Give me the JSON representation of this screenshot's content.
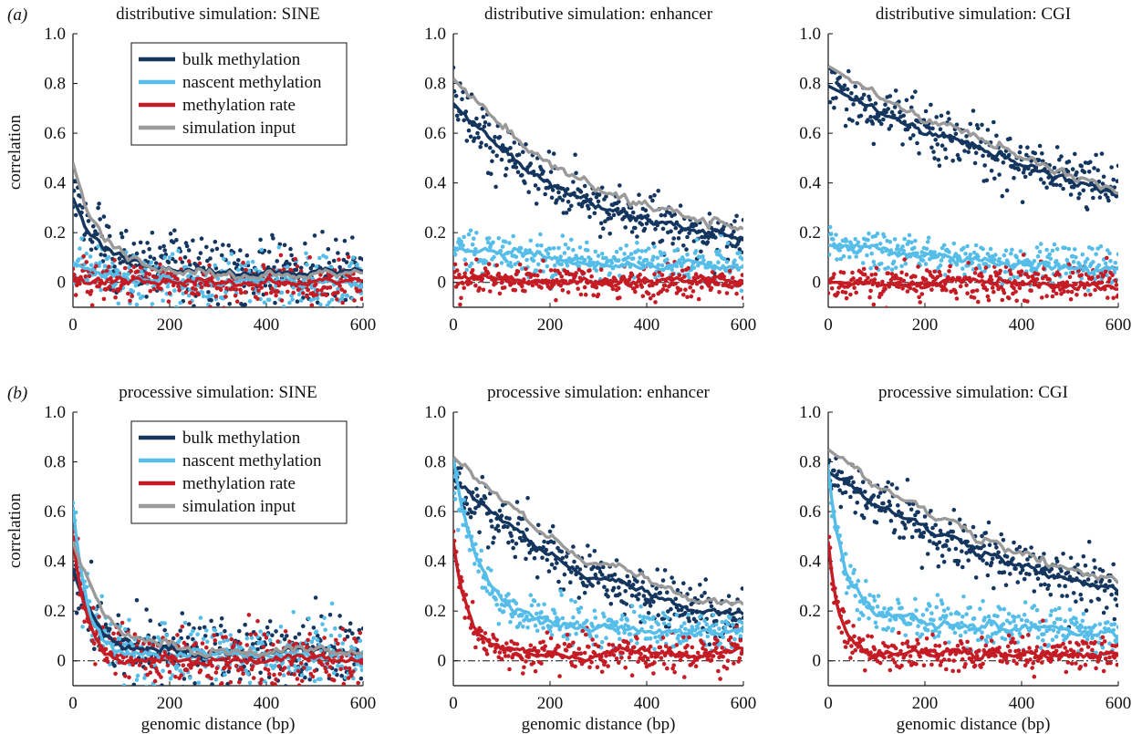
{
  "panel_labels": [
    "(a)",
    "(b)"
  ],
  "legend": {
    "entries": [
      "bulk methylation",
      "nascent methylation",
      "methylation rate",
      "simulation input"
    ]
  },
  "colors": {
    "bulk methylation": "#14365e",
    "nascent methylation": "#55bde8",
    "methylation rate": "#c41b24",
    "simulation input": "#9a9a9a"
  },
  "chart_data": [
    {
      "type": "scatter",
      "title": "distributive simulation: SINE",
      "xlabel": "",
      "ylabel": "correlation",
      "xlim": [
        0,
        600
      ],
      "ylim": [
        -0.1,
        1.0
      ],
      "xticks": [
        0,
        200,
        400,
        600
      ],
      "yticks": [
        0,
        0.2,
        0.4,
        0.6,
        0.8,
        1.0
      ],
      "legend_position": "top-left",
      "series": [
        {
          "name": "bulk methylation",
          "model": {
            "a0": 0.04,
            "a": 0.3,
            "L": 60
          },
          "noise": 0.075
        },
        {
          "name": "nascent methylation",
          "model": {
            "a0": 0.0,
            "a": 0.08,
            "L": 80
          },
          "noise": 0.05
        },
        {
          "name": "methylation rate",
          "model": {
            "a0": 0.0,
            "a": 0.02,
            "L": 50
          },
          "noise": 0.04
        },
        {
          "name": "simulation input",
          "model": {
            "a0": 0.03,
            "a": 0.45,
            "L": 60
          },
          "line_only": true
        }
      ]
    },
    {
      "type": "scatter",
      "title": "distributive simulation: enhancer",
      "xlabel": "",
      "ylabel": "",
      "xlim": [
        0,
        600
      ],
      "ylim": [
        -0.1,
        1.0
      ],
      "xticks": [
        0,
        200,
        400,
        600
      ],
      "yticks": [
        0,
        0.2,
        0.4,
        0.6,
        0.8,
        1.0
      ],
      "series": [
        {
          "name": "bulk methylation",
          "model": {
            "a0": 0.1,
            "a": 0.62,
            "L": 280
          },
          "noise": 0.055
        },
        {
          "name": "nascent methylation",
          "model": {
            "a0": 0.05,
            "a": 0.09,
            "L": 300
          },
          "noise": 0.04
        },
        {
          "name": "methylation rate",
          "model": {
            "a0": 0.0,
            "a": 0.02,
            "L": 200
          },
          "noise": 0.035
        },
        {
          "name": "simulation input",
          "model": {
            "a0": 0.1,
            "a": 0.72,
            "L": 320
          },
          "line_only": true
        }
      ]
    },
    {
      "type": "scatter",
      "title": "distributive simulation: CGI",
      "xlabel": "",
      "ylabel": "",
      "xlim": [
        0,
        600
      ],
      "ylim": [
        -0.1,
        1.0
      ],
      "xticks": [
        0,
        200,
        400,
        600
      ],
      "yticks": [
        0,
        0.2,
        0.4,
        0.6,
        0.8,
        1.0
      ],
      "series": [
        {
          "name": "bulk methylation",
          "model": {
            "a0": 0.0,
            "a": 0.79,
            "L": 800
          },
          "noise": 0.055
        },
        {
          "name": "nascent methylation",
          "model": {
            "a0": 0.02,
            "a": 0.13,
            "L": 500
          },
          "noise": 0.04
        },
        {
          "name": "methylation rate",
          "model": {
            "a0": 0.0,
            "a": 0.0,
            "L": 200
          },
          "noise": 0.035
        },
        {
          "name": "simulation input",
          "model": {
            "a0": 0.0,
            "a": 0.87,
            "L": 750
          },
          "line_only": true
        }
      ]
    },
    {
      "type": "scatter",
      "title": "processive simulation: SINE",
      "xlabel": "genomic distance (bp)",
      "ylabel": "correlation",
      "xlim": [
        0,
        600
      ],
      "ylim": [
        -0.1,
        1.0
      ],
      "xticks": [
        0,
        200,
        400,
        600
      ],
      "yticks": [
        0,
        0.2,
        0.4,
        0.6,
        0.8,
        1.0
      ],
      "legend_position": "top-left",
      "series": [
        {
          "name": "bulk methylation",
          "model": {
            "a0": 0.03,
            "a": 0.34,
            "L": 50
          },
          "noise": 0.07
        },
        {
          "name": "nascent methylation",
          "model": {
            "a0": 0.02,
            "a": 0.6,
            "L": 30
          },
          "noise": 0.065
        },
        {
          "name": "methylation rate",
          "model": {
            "a0": 0.0,
            "a": 0.5,
            "L": 28
          },
          "noise": 0.06
        },
        {
          "name": "simulation input",
          "model": {
            "a0": 0.03,
            "a": 0.45,
            "L": 70
          },
          "line_only": true
        }
      ]
    },
    {
      "type": "scatter",
      "title": "processive simulation: enhancer",
      "xlabel": "genomic distance (bp)",
      "ylabel": "",
      "xlim": [
        0,
        600
      ],
      "ylim": [
        -0.1,
        1.0
      ],
      "xticks": [
        0,
        200,
        400,
        600
      ],
      "yticks": [
        0,
        0.2,
        0.4,
        0.6,
        0.8,
        1.0
      ],
      "series": [
        {
          "name": "bulk methylation",
          "model": {
            "a0": 0.05,
            "a": 0.68,
            "L": 350
          },
          "noise": 0.055
        },
        {
          "name": "nascent methylation",
          "model": {
            "a0": 0.1,
            "a": 0.6,
            "L": 45,
            "b": 0.12,
            "L2": 250
          },
          "noise": 0.045
        },
        {
          "name": "methylation rate",
          "model": {
            "a0": 0.03,
            "a": 0.45,
            "L": 30
          },
          "noise": 0.035
        },
        {
          "name": "simulation input",
          "model": {
            "a0": 0.05,
            "a": 0.77,
            "L": 380
          },
          "line_only": true
        }
      ]
    },
    {
      "type": "scatter",
      "title": "processive simulation: CGI",
      "xlabel": "genomic distance (bp)",
      "ylabel": "",
      "xlim": [
        0,
        600
      ],
      "ylim": [
        -0.1,
        1.0
      ],
      "xticks": [
        0,
        200,
        400,
        600
      ],
      "yticks": [
        0,
        0.2,
        0.4,
        0.6,
        0.8,
        1.0
      ],
      "series": [
        {
          "name": "bulk methylation",
          "model": {
            "a0": 0.1,
            "a": 0.66,
            "L": 480
          },
          "noise": 0.055
        },
        {
          "name": "nascent methylation",
          "model": {
            "a0": 0.1,
            "a": 0.55,
            "L": 30,
            "b": 0.12,
            "L2": 300
          },
          "noise": 0.045
        },
        {
          "name": "methylation rate",
          "model": {
            "a0": 0.03,
            "a": 0.45,
            "L": 22
          },
          "noise": 0.035
        },
        {
          "name": "simulation input",
          "model": {
            "a0": 0.1,
            "a": 0.75,
            "L": 500
          },
          "line_only": true
        }
      ]
    }
  ]
}
